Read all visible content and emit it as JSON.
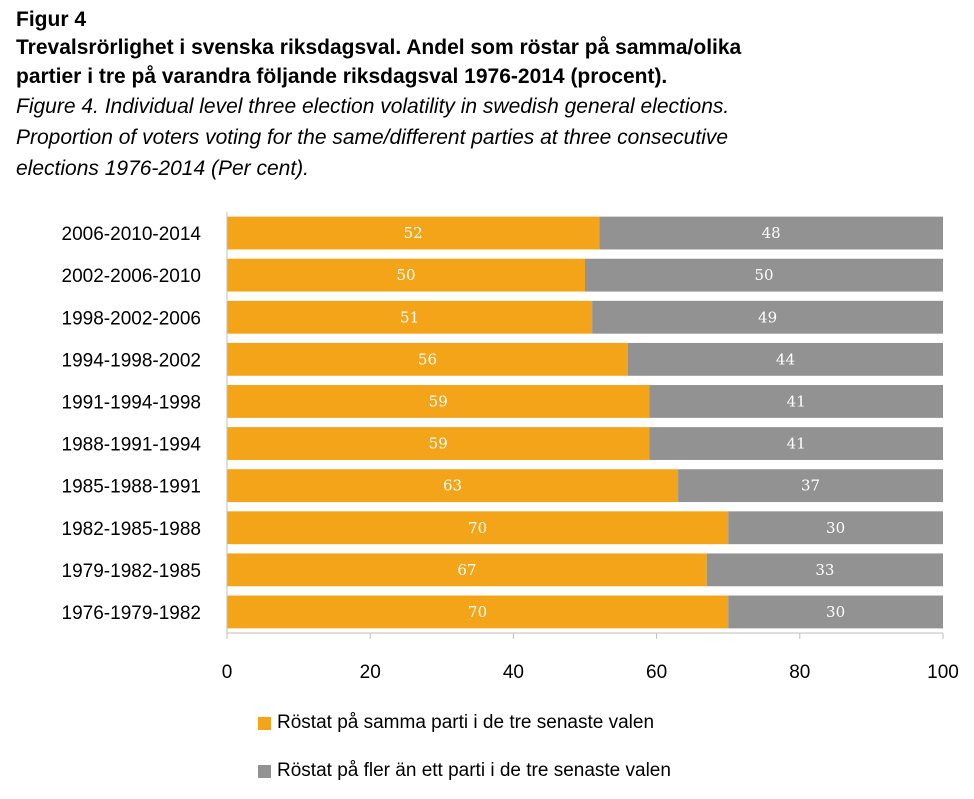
{
  "header": {
    "figure_label": "Figur 4",
    "title_sv_line1": "Trevalsrörlighet i svenska riksdagsval. Andel som röstar på samma/olika",
    "title_sv_line2": "partier i tre på varandra följande riksdagsval 1976-2014 (procent).",
    "title_en_line1": "Figure 4. Individual level three election volatility in swedish general elections.",
    "title_en_line2": "Proportion of voters voting for the same/different parties at three consecutive",
    "title_en_line3": "elections 1976-2014 (Per cent)."
  },
  "colors": {
    "same": "#F4A418",
    "different": "#929292",
    "axis": "#BFBFBF"
  },
  "chart_data": {
    "type": "bar",
    "orientation": "horizontal",
    "stacked": true,
    "title": "Trevalsrörlighet i svenska riksdagsval. Andel som röstar på samma/olika partier i tre på varandra följande riksdagsval 1976-2014 (procent).",
    "categories": [
      "2006-2010-2014",
      "2002-2006-2010",
      "1998-2002-2006",
      "1994-1998-2002",
      "1991-1994-1998",
      "1988-1991-1994",
      "1985-1988-1991",
      "1982-1985-1988",
      "1979-1982-1985",
      "1976-1979-1982"
    ],
    "series": [
      {
        "name": "Röstat på samma parti i de tre senaste valen",
        "values": [
          52,
          50,
          51,
          56,
          59,
          59,
          63,
          70,
          67,
          70
        ]
      },
      {
        "name": "Röstat på fler än ett parti i de tre senaste valen",
        "values": [
          48,
          50,
          49,
          44,
          41,
          41,
          37,
          30,
          33,
          30
        ]
      }
    ],
    "xlim": [
      0,
      100
    ],
    "xticks": [
      0,
      20,
      40,
      60,
      80,
      100
    ],
    "xlabel": "",
    "ylabel": "",
    "grid": false,
    "legend_position": "bottom"
  },
  "legend": {
    "same_label": "Röstat på samma parti i de tre senaste valen",
    "different_label": "Röstat på fler än ett parti i de tre senaste valen"
  }
}
